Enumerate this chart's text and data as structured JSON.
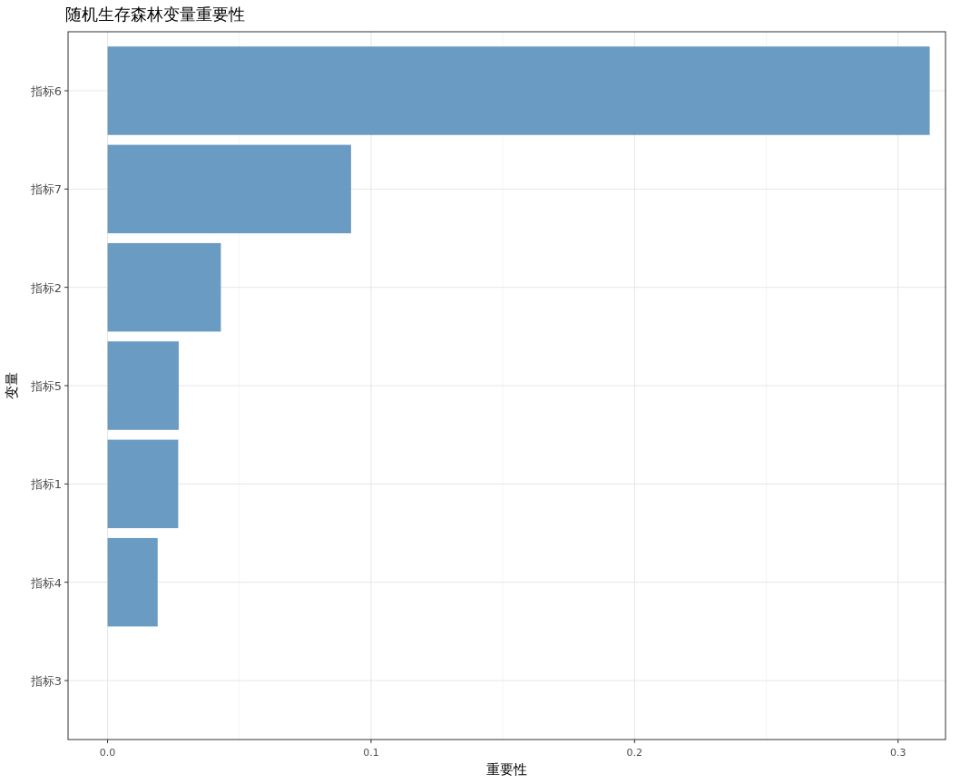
{
  "chart_data": {
    "type": "bar",
    "orientation": "horizontal",
    "title": "随机生存森林变量重要性",
    "xlabel": "重要性",
    "ylabel": "变量",
    "categories": [
      "指标6",
      "指标7",
      "指标2",
      "指标5",
      "指标1",
      "指标4",
      "指标3"
    ],
    "values": [
      0.312,
      0.0924,
      0.043,
      0.027,
      0.0268,
      0.019,
      0
    ],
    "color": "#6a9bc3",
    "xlim": [
      -0.015,
      0.318
    ],
    "xticks": [
      {
        "value": 0,
        "label": "0.0"
      },
      0.1,
      0.2,
      0.3
    ],
    "grid": true
  }
}
